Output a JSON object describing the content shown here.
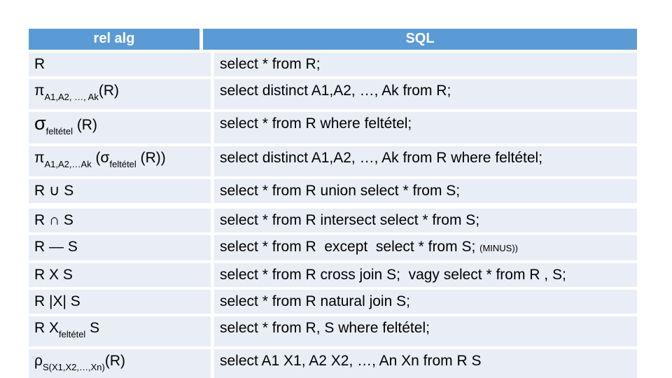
{
  "colors": {
    "header_bg": "#5b9bd5",
    "header_text": "#ffffff",
    "row_bg": "#e9edf5",
    "text": "#000000"
  },
  "table": {
    "headers": [
      {
        "label": "rel alg"
      },
      {
        "label": "SQL"
      }
    ],
    "rows": [
      {
        "relalg": [
          {
            "t": "R"
          }
        ],
        "sql": [
          {
            "t": "select * from R;"
          }
        ]
      },
      {
        "relalg": [
          {
            "t": "π"
          },
          {
            "t": "A1,A2, …, Ak",
            "s": "sub"
          },
          {
            "t": "(R)"
          }
        ],
        "sql": [
          {
            "t": "select distinct A1,A2, …, Ak from R;"
          }
        ]
      },
      {
        "relalg": [
          {
            "t": "σ",
            "s": "big"
          },
          {
            "t": "feltétel",
            "s": "sub"
          },
          {
            "t": " (R)"
          }
        ],
        "sql": [
          {
            "t": "select * from R where feltétel;"
          }
        ]
      },
      {
        "relalg": [
          {
            "t": "π"
          },
          {
            "t": "A1,A2,…Ak",
            "s": "sub"
          },
          {
            "t": " (σ"
          },
          {
            "t": "feltétel",
            "s": "sub"
          },
          {
            "t": " (R))"
          }
        ],
        "sql": [
          {
            "t": "select distinct A1,A2, …, Ak from R where feltétel;"
          }
        ]
      },
      {
        "relalg": [
          {
            "t": "R ∪ S"
          }
        ],
        "sql": [
          {
            "t": "select * from R union select * from S;"
          }
        ]
      },
      {
        "relalg": [
          {
            "t": "R ∩ S"
          }
        ],
        "sql": [
          {
            "t": "select * from R intersect select * from S;"
          }
        ]
      },
      {
        "relalg": [
          {
            "t": "R — S"
          }
        ],
        "sql": [
          {
            "t": "select * from R  except  select * from S; "
          },
          {
            "t": "(MINUS))",
            "s": "small"
          }
        ]
      },
      {
        "relalg": [
          {
            "t": "R X S"
          }
        ],
        "sql": [
          {
            "t": "select * from R cross join S;  vagy select * from R , S;"
          }
        ]
      },
      {
        "relalg": [
          {
            "t": "R |X| S"
          }
        ],
        "sql": [
          {
            "t": "select * from R natural join S;"
          }
        ]
      },
      {
        "relalg": [
          {
            "t": "R X"
          },
          {
            "t": "feltétel",
            "s": "sub"
          },
          {
            "t": " S"
          }
        ],
        "sql": [
          {
            "t": "select * from R, S where feltétel;"
          }
        ]
      },
      {
        "relalg": [
          {
            "t": "ρ"
          },
          {
            "t": "S(X1,X2,…,Xn)",
            "s": "sub"
          },
          {
            "t": "(R)"
          }
        ],
        "sql": [
          {
            "t": "select A1 X1, A2 X2, …, An Xn from R S"
          }
        ]
      }
    ]
  }
}
